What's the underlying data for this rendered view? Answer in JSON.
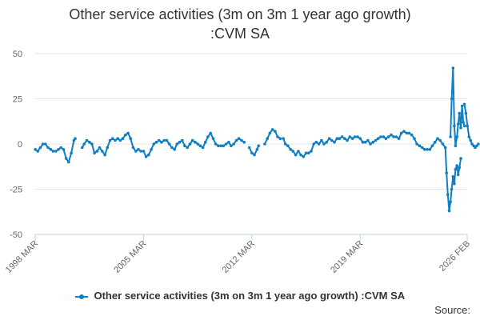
{
  "chart_data": {
    "type": "line",
    "title_line1": "Other service activities (3m on 3m 1 year ago growth)",
    "title_line2": ":CVM SA",
    "series_name": "Other service activities (3m on 3m 1 year ago growth) :CVM SA",
    "color": "#0f7fc2",
    "source_label": "Source:",
    "xlabel": "",
    "ylabel": "",
    "ylim": [
      -50,
      50
    ],
    "yticks": [
      -50,
      -25,
      0,
      25,
      50
    ],
    "ytick_labels": [
      "-50",
      "-25",
      "0",
      "25",
      "50"
    ],
    "xlim": [
      1998.167,
      2026.083
    ],
    "xticks": [
      1998.167,
      2005.167,
      2012.167,
      2019.167,
      2026.083
    ],
    "xtick_labels": [
      "1998 MAR",
      "2005 MAR",
      "2012 MAR",
      "2019 MAR",
      "2026 FEB"
    ],
    "segments": [
      [
        [
          1998.17,
          -3
        ],
        [
          1998.33,
          -4
        ],
        [
          1998.5,
          -2
        ],
        [
          1998.67,
          0
        ],
        [
          1998.83,
          0
        ],
        [
          1999.0,
          -2
        ],
        [
          1999.17,
          -3
        ],
        [
          1999.33,
          -4
        ],
        [
          1999.5,
          -4
        ],
        [
          1999.67,
          -3
        ],
        [
          1999.83,
          -2
        ],
        [
          2000.0,
          -3
        ],
        [
          2000.17,
          -8
        ],
        [
          2000.33,
          -10
        ],
        [
          2000.5,
          -5
        ],
        [
          2000.67,
          2
        ],
        [
          2000.75,
          3
        ]
      ],
      [
        [
          2001.2,
          -2
        ],
        [
          2001.33,
          0
        ],
        [
          2001.5,
          2
        ],
        [
          2001.67,
          1
        ],
        [
          2001.83,
          0
        ],
        [
          2002.0,
          -5
        ],
        [
          2002.17,
          -4
        ],
        [
          2002.33,
          -2
        ],
        [
          2002.5,
          -4
        ],
        [
          2002.67,
          -6
        ],
        [
          2002.83,
          -2
        ],
        [
          2003.0,
          2
        ],
        [
          2003.17,
          3
        ],
        [
          2003.33,
          2
        ],
        [
          2003.5,
          3
        ],
        [
          2003.67,
          2
        ],
        [
          2003.83,
          3
        ],
        [
          2004.0,
          5
        ],
        [
          2004.17,
          6
        ],
        [
          2004.33,
          3
        ],
        [
          2004.5,
          -2
        ],
        [
          2004.67,
          -4
        ],
        [
          2004.83,
          -3
        ],
        [
          2005.0,
          -4
        ],
        [
          2005.17,
          -4
        ],
        [
          2005.33,
          -7
        ],
        [
          2005.5,
          -6
        ],
        [
          2005.67,
          -3
        ],
        [
          2005.83,
          0
        ],
        [
          2006.0,
          1
        ],
        [
          2006.17,
          2
        ],
        [
          2006.33,
          1
        ],
        [
          2006.5,
          2
        ],
        [
          2006.67,
          2
        ],
        [
          2006.83,
          0
        ],
        [
          2007.0,
          -2
        ],
        [
          2007.17,
          -3
        ],
        [
          2007.33,
          0
        ],
        [
          2007.5,
          1
        ],
        [
          2007.67,
          2
        ],
        [
          2007.83,
          -1
        ],
        [
          2008.0,
          -2
        ],
        [
          2008.17,
          0
        ],
        [
          2008.33,
          2
        ],
        [
          2008.5,
          1
        ],
        [
          2008.67,
          0
        ],
        [
          2008.83,
          -1
        ],
        [
          2009.0,
          -2
        ],
        [
          2009.17,
          1
        ],
        [
          2009.33,
          4
        ],
        [
          2009.5,
          6
        ],
        [
          2009.67,
          3
        ],
        [
          2009.83,
          0
        ],
        [
          2010.0,
          -1
        ],
        [
          2010.17,
          -1
        ],
        [
          2010.33,
          -1
        ],
        [
          2010.5,
          0
        ],
        [
          2010.67,
          1
        ],
        [
          2010.83,
          -1
        ],
        [
          2011.0,
          0
        ],
        [
          2011.17,
          2
        ],
        [
          2011.33,
          3
        ],
        [
          2011.5,
          2
        ],
        [
          2011.67,
          1
        ]
      ],
      [
        [
          2012.0,
          -2
        ],
        [
          2012.17,
          -5
        ],
        [
          2012.33,
          -6
        ],
        [
          2012.5,
          -3
        ],
        [
          2012.6,
          -1
        ]
      ],
      [
        [
          2013.0,
          0
        ],
        [
          2013.17,
          3
        ],
        [
          2013.33,
          6
        ],
        [
          2013.5,
          8
        ],
        [
          2013.67,
          7
        ],
        [
          2013.83,
          4
        ],
        [
          2014.0,
          3
        ]
      ],
      [
        [
          2014.2,
          3
        ],
        [
          2014.33,
          0
        ],
        [
          2014.5,
          -1
        ],
        [
          2014.67,
          -3
        ],
        [
          2014.83,
          -4
        ],
        [
          2015.0,
          -6
        ],
        [
          2015.17,
          -4
        ],
        [
          2015.33,
          -6
        ],
        [
          2015.5,
          -7
        ],
        [
          2015.67,
          -5
        ],
        [
          2015.83,
          -5
        ],
        [
          2016.0,
          -4
        ],
        [
          2016.17,
          0
        ],
        [
          2016.33,
          1
        ],
        [
          2016.5,
          0
        ],
        [
          2016.67,
          2
        ],
        [
          2016.83,
          0
        ],
        [
          2017.0,
          1
        ],
        [
          2017.17,
          3
        ],
        [
          2017.33,
          2
        ],
        [
          2017.5,
          1
        ],
        [
          2017.67,
          3
        ],
        [
          2017.83,
          3
        ],
        [
          2018.0,
          4
        ],
        [
          2018.17,
          3
        ],
        [
          2018.33,
          2
        ],
        [
          2018.5,
          4
        ],
        [
          2018.67,
          3
        ],
        [
          2018.83,
          4
        ],
        [
          2019.0,
          4
        ],
        [
          2019.17,
          3
        ],
        [
          2019.33,
          1
        ],
        [
          2019.5,
          1
        ],
        [
          2019.67,
          2
        ],
        [
          2019.83,
          0
        ],
        [
          2020.0,
          1
        ],
        [
          2020.17,
          2
        ],
        [
          2020.33,
          3
        ],
        [
          2020.5,
          4
        ],
        [
          2020.67,
          4
        ],
        [
          2020.83,
          3
        ],
        [
          2021.0,
          4
        ],
        [
          2021.17,
          5
        ],
        [
          2021.33,
          4
        ],
        [
          2021.5,
          4
        ],
        [
          2021.67,
          3
        ],
        [
          2021.83,
          6
        ],
        [
          2022.0,
          7
        ],
        [
          2022.17,
          6
        ],
        [
          2022.33,
          6
        ],
        [
          2022.5,
          5
        ],
        [
          2022.67,
          3
        ],
        [
          2022.83,
          0
        ],
        [
          2023.0,
          -1
        ],
        [
          2023.17,
          -2
        ],
        [
          2023.33,
          -3
        ],
        [
          2023.5,
          -3
        ],
        [
          2023.67,
          -3
        ],
        [
          2023.83,
          -1
        ],
        [
          2024.0,
          1
        ],
        [
          2024.17,
          3
        ],
        [
          2024.33,
          2
        ],
        [
          2024.5,
          0
        ],
        [
          2024.67,
          -2
        ],
        [
          2024.75,
          -16
        ],
        [
          2024.83,
          -28
        ],
        [
          2024.92,
          -37
        ],
        [
          2025.0,
          -32
        ],
        [
          2025.08,
          -25
        ],
        [
          2025.17,
          -18
        ],
        [
          2025.25,
          -22
        ],
        [
          2025.33,
          -14
        ],
        [
          2025.42,
          -12
        ],
        [
          2025.5,
          -17
        ],
        [
          2025.58,
          -13
        ],
        [
          2025.67,
          -8
        ]
      ],
      [
        [
          2025.0,
          4
        ],
        [
          2025.08,
          25
        ],
        [
          2025.17,
          42
        ],
        [
          2025.25,
          10
        ],
        [
          2025.33,
          -1
        ],
        [
          2025.42,
          4
        ],
        [
          2025.5,
          11
        ],
        [
          2025.58,
          17
        ],
        [
          2025.67,
          9
        ],
        [
          2025.75,
          21
        ],
        [
          2025.83,
          12
        ],
        [
          2025.92,
          10
        ]
      ],
      [
        [
          2025.9,
          22
        ],
        [
          2026.0,
          17
        ],
        [
          2026.1,
          10
        ],
        [
          2026.2,
          4
        ],
        [
          2026.3,
          2
        ],
        [
          2026.4,
          0
        ],
        [
          2026.5,
          -1
        ],
        [
          2026.6,
          -2
        ],
        [
          2026.7,
          -1
        ],
        [
          2026.8,
          0
        ]
      ]
    ]
  }
}
